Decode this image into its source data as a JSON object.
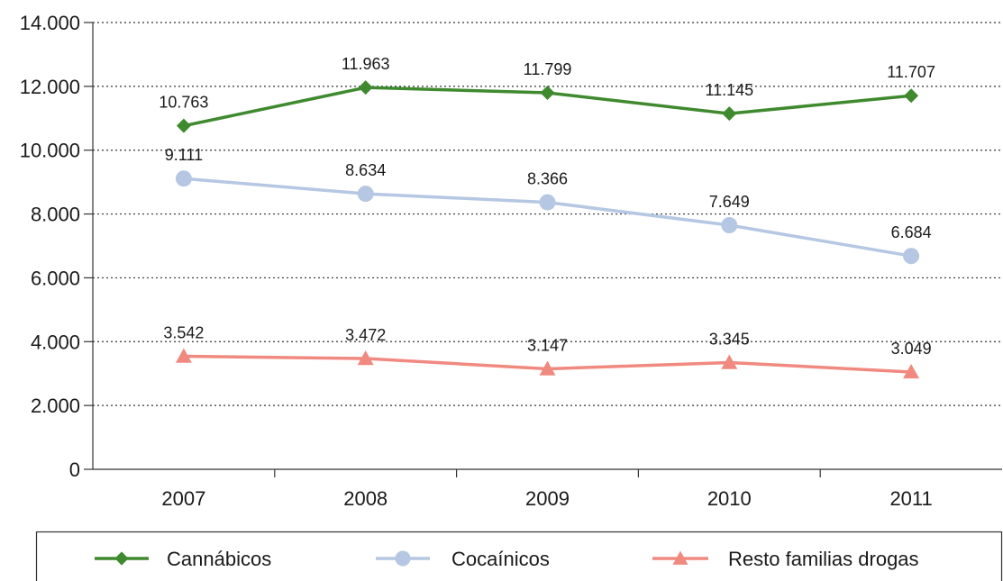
{
  "chart_data": {
    "type": "line",
    "categories": [
      "2007",
      "2008",
      "2009",
      "2010",
      "2011"
    ],
    "ylim": [
      0,
      14000
    ],
    "yticks": [
      0,
      2000,
      4000,
      6000,
      8000,
      10000,
      12000,
      14000
    ],
    "ytick_labels": [
      "0",
      "2.000",
      "4.000",
      "6.000",
      "8.000",
      "10.000",
      "12.000",
      "14.000"
    ],
    "grid": "horizontal dotted",
    "legend_position": "bottom",
    "series": [
      {
        "name": "Cannábicos",
        "values": [
          10763,
          11963,
          11799,
          11145,
          11707
        ],
        "labels": [
          "10.763",
          "11.963",
          "11.799",
          "11.145",
          "11.707"
        ],
        "color": "#3f8a2e",
        "marker": "diamond"
      },
      {
        "name": "Cocaínicos",
        "values": [
          9111,
          8634,
          8366,
          7649,
          6684
        ],
        "labels": [
          "9.111",
          "8.634",
          "8.366",
          "7.649",
          "6.684"
        ],
        "color": "#b5c7e2",
        "marker": "circle"
      },
      {
        "name": "Resto familias drogas",
        "values": [
          3542,
          3472,
          3147,
          3345,
          3049
        ],
        "labels": [
          "3.542",
          "3.472",
          "3.147",
          "3.345",
          "3.049"
        ],
        "color": "#f08a80",
        "marker": "triangle"
      }
    ]
  }
}
